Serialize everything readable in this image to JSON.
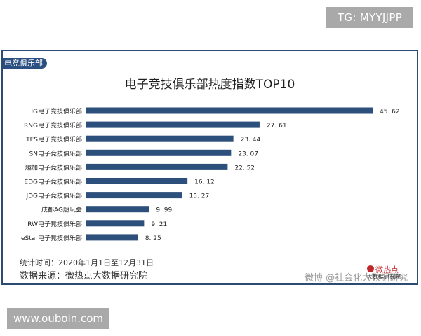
{
  "tg_badge": "TG: MYYJJPP",
  "url_badge": "www.ouboin.com",
  "card": {
    "tag": "电竞俱乐部",
    "footnote_period": "统计时间：2020年1月1日至12月31日",
    "footnote_source": "数据来源：微热点大数据研究院",
    "watermark_weibo": "微博 @社会化大数据研究",
    "watermark_brand": "微热点",
    "watermark_sub": "大数据研究院"
  },
  "colors": {
    "bar": "#2d4f7c",
    "frame": "#2c4a72",
    "tag_bg": "#2a4f80"
  },
  "chart_data": {
    "type": "bar",
    "orientation": "horizontal",
    "title": "电子竞技俱乐部热度指数TOP10",
    "categories": [
      "IG电子竞技俱乐部",
      "RNG电子竞技俱乐部",
      "TES电子竞技俱乐部",
      "SN电子竞技俱乐部",
      "趣加电子竞技俱乐部",
      "EDG电子竞技俱乐部",
      "JDG电子竞技俱乐部",
      "成都AG超玩会",
      "RW电子竞技俱乐部",
      "eStar电子竞技俱乐部"
    ],
    "values": [
      45.62,
      27.61,
      23.44,
      23.07,
      22.52,
      16.12,
      15.27,
      9.99,
      9.21,
      8.25
    ],
    "value_labels": [
      "45. 62",
      "27. 61",
      "23. 44",
      "23. 07",
      "22. 52",
      "16. 12",
      "15. 27",
      "9. 99",
      "9. 21",
      "8. 25"
    ],
    "xlim": [
      0,
      45.62
    ],
    "grid": false,
    "legend": "none"
  }
}
